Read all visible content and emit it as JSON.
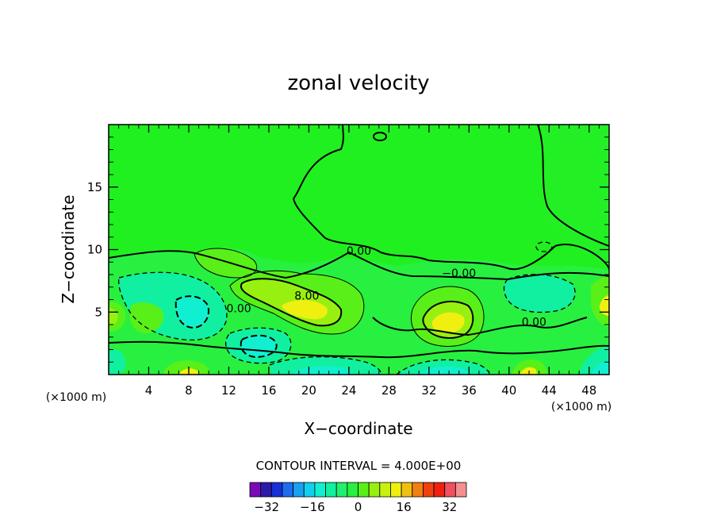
{
  "chart_data": {
    "type": "contour",
    "title": "zonal velocity",
    "xlabel": "X−coordinate",
    "ylabel": "Z−coordinate",
    "x_unit": "(×1000 m)",
    "y_unit": "(×1000 m)",
    "xlim": [
      0,
      50
    ],
    "ylim": [
      0,
      20
    ],
    "x_ticks": [
      4,
      8,
      12,
      16,
      20,
      24,
      28,
      32,
      36,
      40,
      44,
      48
    ],
    "x_tick_labels": [
      "4",
      "8",
      "12",
      "16",
      "20",
      "24",
      "28",
      "32",
      "36",
      "40",
      "44",
      "48"
    ],
    "y_ticks": [
      5,
      10,
      15
    ],
    "y_tick_labels": [
      "5",
      "10",
      "15"
    ],
    "contour_interval_text": "CONTOUR INTERVAL = 4.000E+00",
    "contour_labels": [
      {
        "text": "0.00",
        "x": 25.0,
        "y": 9.6
      },
      {
        "text": "−0.00",
        "x": 35.0,
        "y": 7.8
      },
      {
        "text": "8.00",
        "x": 19.8,
        "y": 6.0
      },
      {
        "text": "0.00",
        "x": 13.0,
        "y": 5.0
      },
      {
        "text": "0.00",
        "x": 42.5,
        "y": 3.9
      }
    ],
    "colorbar": {
      "levels": [
        -36,
        -32,
        -28,
        -24,
        -20,
        -16,
        -12,
        -8,
        -4,
        0,
        4,
        8,
        12,
        16,
        20,
        24,
        28,
        32,
        36
      ],
      "tick_values": [
        -32,
        -16,
        0,
        16,
        32
      ],
      "tick_labels": [
        "−32",
        "−16",
        "0",
        "16",
        "32"
      ],
      "colors": [
        "#7a0ab8",
        "#2c1aa8",
        "#1830d8",
        "#1f6cf0",
        "#1aa0f0",
        "#10d0f0",
        "#10f0d0",
        "#10f0a0",
        "#20f070",
        "#28f040",
        "#58f018",
        "#98f010",
        "#c8f010",
        "#f0f010",
        "#f0c010",
        "#f08010",
        "#f04010",
        "#f02010",
        "#f05060",
        "#f59090"
      ]
    },
    "field_features": [
      {
        "value": -6,
        "x": 8.6,
        "y": 5.3
      },
      {
        "value": -6,
        "x": 15.8,
        "y": 2.3
      },
      {
        "value": -6,
        "x": 21.5,
        "y": 0.6
      },
      {
        "value": -6,
        "x": 34.0,
        "y": 0.6
      },
      {
        "value": -6,
        "x": 45.5,
        "y": 1.6
      },
      {
        "value": -2,
        "x": 42.0,
        "y": 6.5
      },
      {
        "value": 6,
        "x": 22.0,
        "y": 5.5
      },
      {
        "value": 6,
        "x": 33.8,
        "y": 4.0
      },
      {
        "value": 6,
        "x": 8.6,
        "y": 0.6
      },
      {
        "value": 6,
        "x": 49.8,
        "y": 5.6
      },
      {
        "value": 6,
        "x": 42.2,
        "y": 0.8
      },
      {
        "value": 2,
        "x": 4.5,
        "y": 3.9
      },
      {
        "value": 2,
        "x": 10.5,
        "y": 9.0
      }
    ]
  }
}
